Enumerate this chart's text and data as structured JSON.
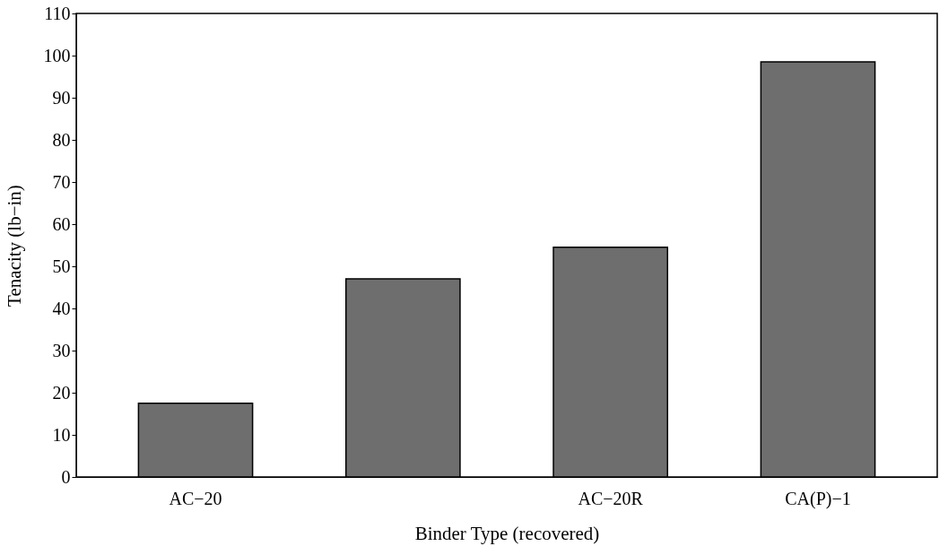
{
  "chart_data": {
    "type": "bar",
    "xlabel": "Binder Type (recovered)",
    "ylabel": "Tenacity (lb−in)",
    "categories": [
      "AC−20",
      null,
      "AC−20R",
      "CA(P)−1"
    ],
    "values": [
      17.5,
      47,
      54.5,
      98.5
    ],
    "color": "#6e6e6e",
    "ylim": [
      0,
      110
    ],
    "yticks": [
      0,
      10,
      20,
      30,
      40,
      50,
      60,
      70,
      80,
      90,
      100,
      110
    ],
    "grid": false
  }
}
